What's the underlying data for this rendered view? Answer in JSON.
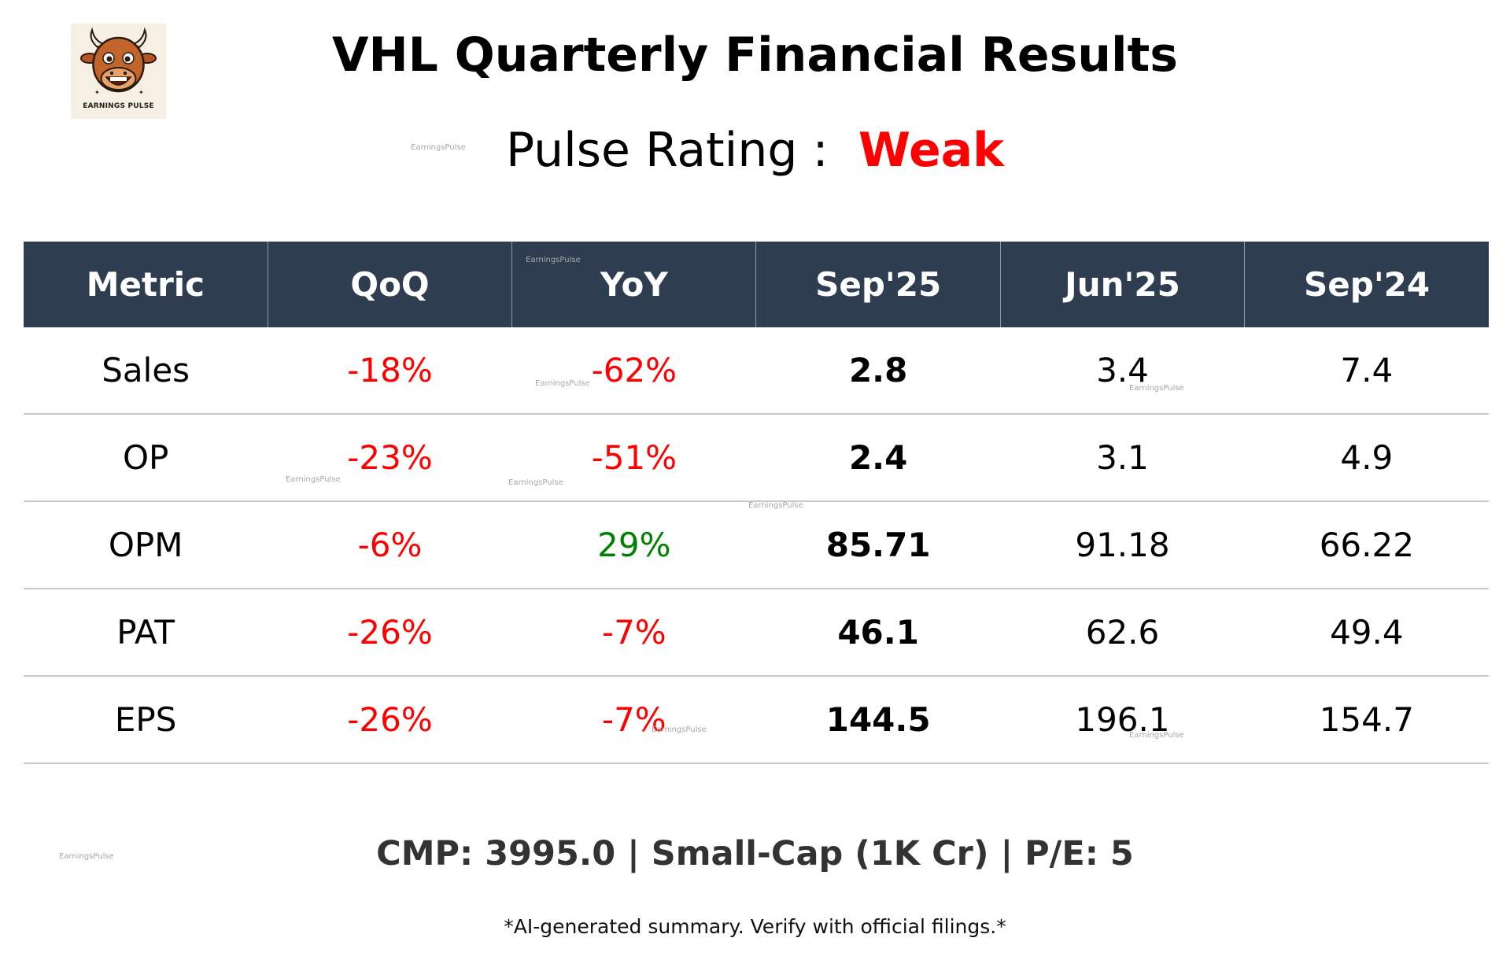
{
  "logo": {
    "text": "EARNINGS PULSE"
  },
  "title": "VHL Quarterly Financial Results",
  "pulse": {
    "label": "Pulse Rating :",
    "value": "Weak",
    "value_color": "#ff0000"
  },
  "watermark_text": "EarningsPulse",
  "chart_data": {
    "type": "table",
    "columns": [
      "Metric",
      "QoQ",
      "YoY",
      "Sep'25",
      "Jun'25",
      "Sep'24"
    ],
    "rows": [
      {
        "metric": "Sales",
        "qoq": "-18%",
        "yoy": "-62%",
        "sep25": "2.8",
        "jun25": "3.4",
        "sep24": "7.4"
      },
      {
        "metric": "OP",
        "qoq": "-23%",
        "yoy": "-51%",
        "sep25": "2.4",
        "jun25": "3.1",
        "sep24": "4.9"
      },
      {
        "metric": "OPM",
        "qoq": "-6%",
        "yoy": "29%",
        "sep25": "85.71",
        "jun25": "91.18",
        "sep24": "66.22"
      },
      {
        "metric": "PAT",
        "qoq": "-26%",
        "yoy": "-7%",
        "sep25": "46.1",
        "jun25": "62.6",
        "sep24": "49.4"
      },
      {
        "metric": "EPS",
        "qoq": "-26%",
        "yoy": "-7%",
        "sep25": "144.5",
        "jun25": "196.1",
        "sep24": "154.7"
      }
    ],
    "colors": {
      "header_bg": "#2e3e50",
      "negative": "#ff0000",
      "positive": "#008000"
    }
  },
  "footer": "CMP: 3995.0 | Small-Cap (1K Cr) | P/E: 5",
  "disclaimer": "*AI-generated summary. Verify with official filings.*"
}
